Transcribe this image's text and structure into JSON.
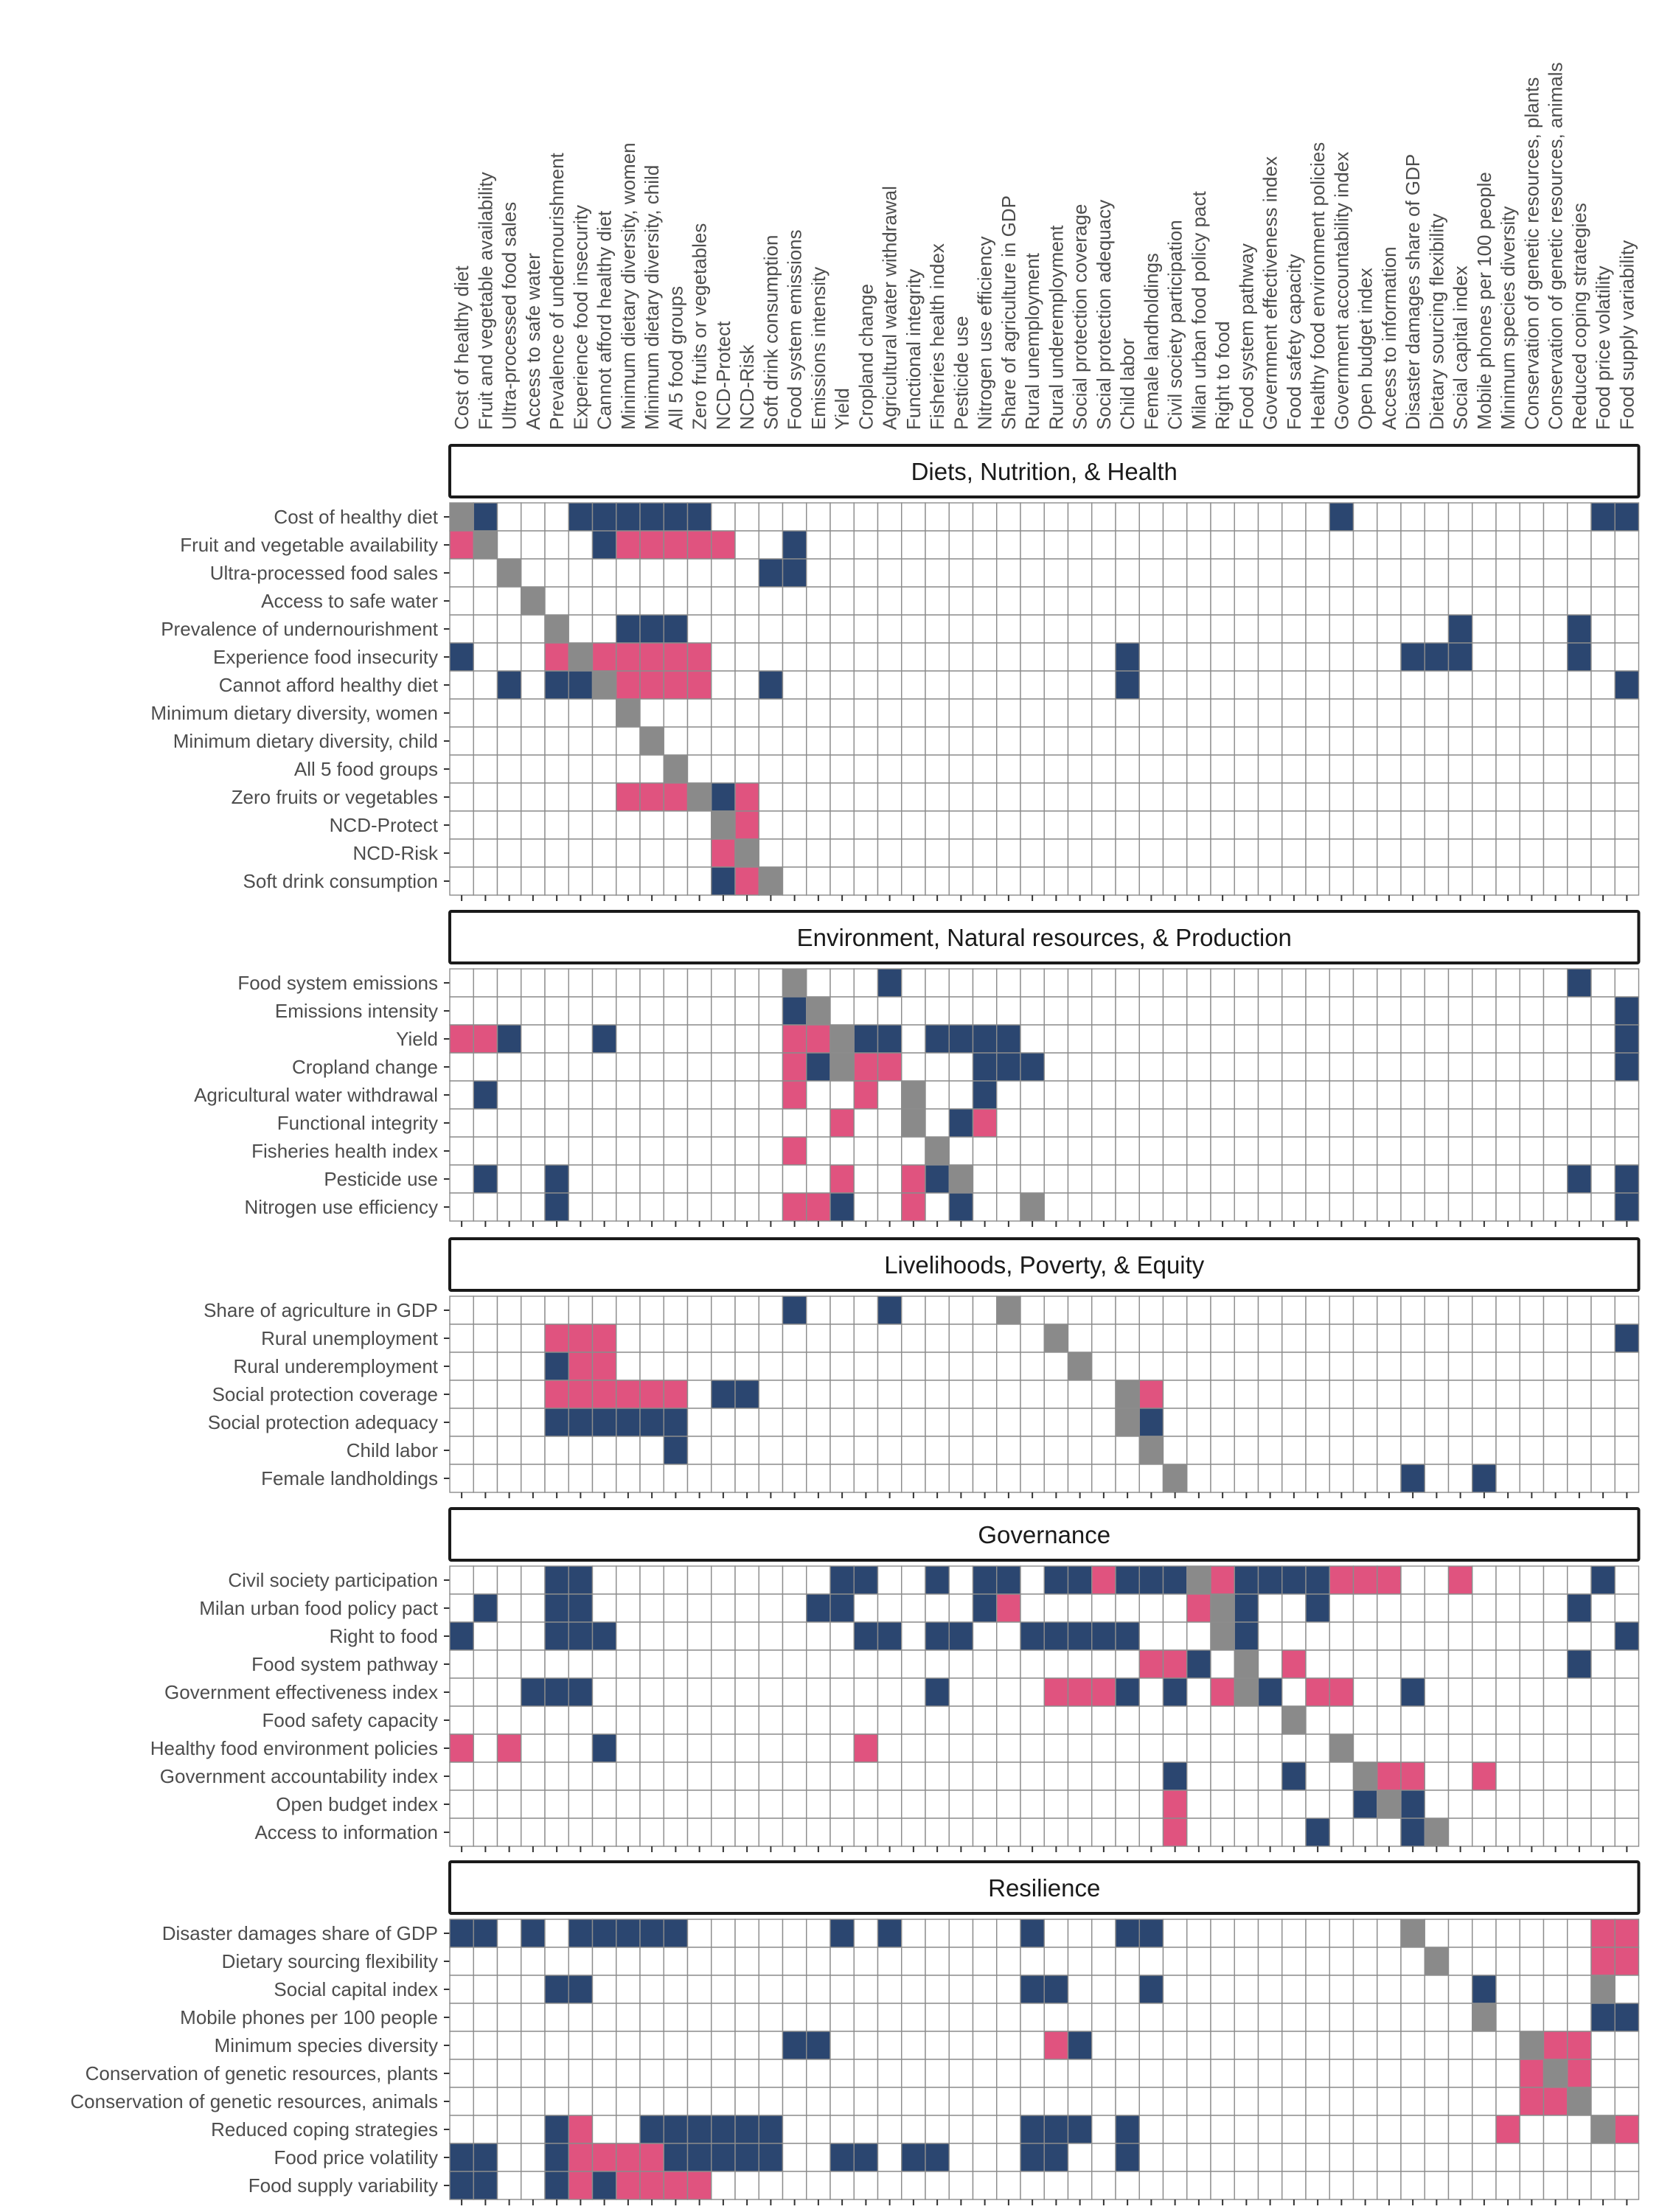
{
  "chart_data": {
    "type": "heatmap",
    "columns": [
      "Cost of healthy diet",
      "Fruit and vegetable availability",
      "Ultra-processed food sales",
      "Access to safe water",
      "Prevalence of undernourishment",
      "Experience food insecurity",
      "Cannot afford healthy diet",
      "Minimum dietary diversity, women",
      "Minimum dietary diversity, child",
      "All 5 food groups",
      "Zero fruits or vegetables",
      "NCD-Protect",
      "NCD-Risk",
      "Soft drink consumption",
      "Food system emissions",
      "Emissions intensity",
      "Yield",
      "Cropland change",
      "Agricultural water withdrawal",
      "Functional integrity",
      "Fisheries health index",
      "Pesticide use",
      "Nitrogen use efficiency",
      "Share of agriculture in GDP",
      "Rural unemployment",
      "Rural underemployment",
      "Social protection coverage",
      "Social protection adequacy",
      "Child labor",
      "Female landholdings",
      "Civil society participation",
      "Milan urban food policy pact",
      "Right to food",
      "Food system pathway",
      "Government effectiveness index",
      "Food safety capacity",
      "Healthy food environment policies",
      "Government accountability index",
      "Open budget index",
      "Access to information",
      "Disaster damages share of GDP",
      "Dietary sourcing flexibility",
      "Social capital index",
      "Mobile phones per 100 people",
      "Minimum species diversity",
      "Conservation of genetic resources, plants",
      "Conservation of genetic resources, animals",
      "Reduced coping strategies",
      "Food price volatility",
      "Food supply variability"
    ],
    "legend": {
      "D": "#2b4670",
      "P": "#e0537f",
      "G": "#8a8a8a",
      "empty": "#ffffff"
    },
    "panels": [
      {
        "title": "Diets, Nutrition, & Health",
        "rows": [
          {
            "label": "Cost of healthy diet",
            "cells": "GD...DDDDDD..........................D..........DD."
          },
          {
            "label": "Fruit and vegetable availability",
            "cells": "PG....DPPPPP..D...................................D."
          },
          {
            "label": "Ultra-processed food sales",
            "cells": "..G..........DD....................................."
          },
          {
            "label": "Access to safe water",
            "cells": "...G.............................................."
          },
          {
            "label": "Prevalence of undernourishment",
            "cells": "....G..DDD................................D....D.."
          },
          {
            "label": "Experience food insecurity",
            "cells": "D...PGPPPPP.................D...........DDD....D.."
          },
          {
            "label": "Cannot afford healthy diet",
            "cells": "..D.DDGPPPP..D..............D....................D.."
          },
          {
            "label": "Minimum dietary diversity, women",
            "cells": ".......G.........................................."
          },
          {
            "label": "Minimum dietary diversity, child",
            "cells": "........G........................................."
          },
          {
            "label": "All 5 food groups",
            "cells": ".........G........................................"
          },
          {
            "label": "Zero fruits or vegetables",
            "cells": ".......PPPGDP....................................."
          },
          {
            "label": "NCD-Protect",
            "cells": "...........GP....................................."
          },
          {
            "label": "NCD-Risk",
            "cells": "...........PG....................................."
          },
          {
            "label": "Soft drink consumption",
            "cells": "...........DPG...................................."
          }
        ]
      },
      {
        "title": "Environment, Natural resources, & Production",
        "rows": [
          {
            "label": "Food system emissions",
            "cells": "..............G...D............................D.."
          },
          {
            "label": "Emissions intensity",
            "cells": "..............DG.................................D.."
          },
          {
            "label": "Yield",
            "cells": "PPD...D.......PPGDD.DDDD.........................DDD"
          },
          {
            "label": "Cropland change",
            "cells": "..............PDGPP...DDD........................DD."
          },
          {
            "label": "Agricultural water withdrawal",
            "cells": ".D............P..P.G..D..........................."
          },
          {
            "label": "Functional integrity",
            "cells": "................P..G.DP...........................D."
          },
          {
            "label": "Fisheries health index",
            "cells": "..............P.....G.............................D."
          },
          {
            "label": "Pesticide use",
            "cells": ".D..D...........P..PDG.........................D.D.."
          },
          {
            "label": "Nitrogen use efficiency",
            "cells": "....D.........PPD..P.D..G........................D.."
          }
        ]
      },
      {
        "title": "Livelihoods, Poverty, & Equity",
        "rows": [
          {
            "label": "Share of agriculture in GDP",
            "cells": "..............D...D....G.........................."
          },
          {
            "label": "Rural unemployment",
            "cells": "....PPP..................G.......................DD."
          },
          {
            "label": "Rural underemployment",
            "cells": "....DPP...................G.......................DP."
          },
          {
            "label": "Social protection coverage",
            "cells": "....PPPPPP.DD...............GP.....................D.."
          },
          {
            "label": "Social protection adequacy",
            "cells": "....DDDDDD..................GD....................D.."
          },
          {
            "label": "Child labor",
            "cells": ".........D...................G....................D.."
          },
          {
            "label": "Female landholdings",
            "cells": "..............................G.........D..D......"
          }
        ]
      },
      {
        "title": "Governance",
        "rows": [
          {
            "label": "Civil society participation",
            "cells": "....DD..........DD..D.DD.DDPDDDGPDDDDPPP..P.....D.."
          },
          {
            "label": "Milan urban food policy pact",
            "cells": ".D..DD.........DD.....DP.......PGD..D..........D..DDD"
          },
          {
            "label": "Right to food",
            "cells": "D...DDD..........DD.DD..DDDDD...GD...............DDD"
          },
          {
            "label": "Food system pathway",
            "cells": ".............................PPD.G.P...........D...."
          },
          {
            "label": "Government effectiveness index",
            "cells": "...DDD..............D....PPPD.D.PGD.PP..D..........D."
          },
          {
            "label": "Food safety capacity",
            "cells": "...................................G.............."
          },
          {
            "label": "Healthy food environment policies",
            "cells": "P.P...D..........P...................G............."
          },
          {
            "label": "Government accountability index",
            "cells": "..............................D....D..GPP..P........"
          },
          {
            "label": "Open budget index",
            "cells": "..............................P.......DGD........."
          },
          {
            "label": "Access to information",
            "cells": "..............................P.....D...DG........"
          }
        ]
      },
      {
        "title": "Resilience",
        "rows": [
          {
            "label": "Disaster damages share of GDP",
            "cells": "DD.D.DDDDD......D.D.....D...DD..........G.......PP"
          },
          {
            "label": "Dietary sourcing flexibility",
            "cells": ".........................................G......PP"
          },
          {
            "label": "Social capital index",
            "cells": "....DD..................DD...D.............D....G..PDP"
          },
          {
            "label": "Mobile phones per 100 people",
            "cells": "...........................................G....DDP"
          },
          {
            "label": "Minimum species diversity",
            "cells": "..............DD.........PD..................GPP..D."
          },
          {
            "label": "Conservation of genetic resources, plants",
            "cells": ".............................................PGP..D."
          },
          {
            "label": "Conservation of genetic resources, animals",
            "cells": ".............................................PPG..D."
          },
          {
            "label": "Reduced coping strategies",
            "cells": "....DP..DDDDDD..........DDD.D...............P...GPP"
          },
          {
            "label": "Food price volatility",
            "cells": "DD..DPPPPDDDDD..DD.DD...DD..D.....................G."
          },
          {
            "label": "Food supply variability",
            "cells": "DD..DPDPPPP.......................................G"
          }
        ]
      }
    ]
  }
}
